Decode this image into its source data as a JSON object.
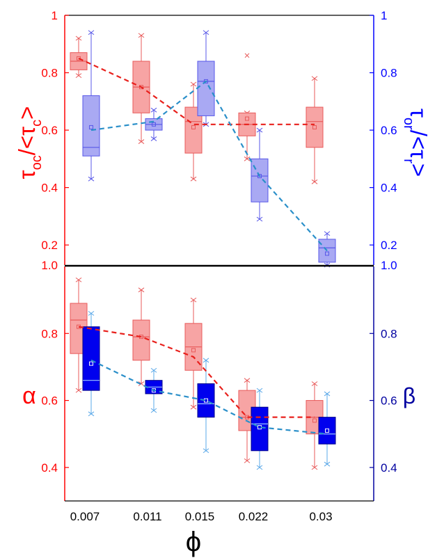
{
  "chart_data": [
    {
      "type": "box",
      "panel": "top",
      "categories": [
        "0.007",
        "0.011",
        "0.015",
        "0.022",
        "0.03"
      ],
      "y_left": {
        "label_main": "τ",
        "label_sub": "oc",
        "label_tail": "/<τ",
        "label_sub2": "c",
        "label_end": ">",
        "ticks": [
          "0.2",
          "0.4",
          "0.6",
          "0.8",
          "1"
        ],
        "bottom_label": "1.0",
        "range": [
          0.13,
          1.0
        ],
        "color": "#ff0000"
      },
      "y_right": {
        "label_main": "τ",
        "label_sub": "or",
        "label_tail": "/<τ",
        "label_sub2": "r",
        "label_end": ">",
        "ticks": [
          "0.2",
          "0.4",
          "0.6",
          "0.8",
          "1"
        ],
        "bottom_label": "1.0",
        "range": [
          0.13,
          1.0
        ],
        "color": "#0000ff"
      },
      "series": [
        {
          "side": "left",
          "fill": "#f7a4a4",
          "stroke": "#e85a5a",
          "line_color": "#e8201c",
          "boxes": [
            {
              "min": 0.79,
              "q1": 0.81,
              "median": 0.84,
              "mean": 0.85,
              "q3": 0.87,
              "max": 0.92
            },
            {
              "min": 0.56,
              "q1": 0.66,
              "median": 0.75,
              "mean": 0.75,
              "q3": 0.84,
              "max": 0.93
            },
            {
              "min": 0.43,
              "q1": 0.52,
              "median": 0.63,
              "mean": 0.61,
              "q3": 0.68,
              "max": 0.76
            },
            {
              "min": 0.5,
              "q1": 0.58,
              "median": 0.62,
              "mean": 0.64,
              "q3": 0.66,
              "max": 0.66,
              "outlier": 0.86
            },
            {
              "min": 0.42,
              "q1": 0.54,
              "median": 0.63,
              "mean": 0.61,
              "q3": 0.68,
              "max": 0.78
            }
          ],
          "trend": [
            0.85,
            0.75,
            0.62,
            0.62,
            0.62
          ]
        },
        {
          "side": "right",
          "fill": "#a9a9f3",
          "stroke": "#5757e8",
          "line_color": "#2a8fc9",
          "boxes": [
            {
              "min": 0.43,
              "q1": 0.51,
              "median": 0.54,
              "mean": 0.61,
              "q3": 0.72,
              "max": 0.94
            },
            {
              "min": 0.57,
              "q1": 0.6,
              "median": 0.62,
              "mean": 0.62,
              "q3": 0.64,
              "max": 0.67
            },
            {
              "min": 0.62,
              "q1": 0.65,
              "median": 0.77,
              "mean": 0.77,
              "q3": 0.84,
              "max": 0.94
            },
            {
              "min": 0.29,
              "q1": 0.35,
              "median": 0.44,
              "mean": 0.44,
              "q3": 0.5,
              "max": 0.6
            },
            {
              "min": 0.13,
              "q1": 0.14,
              "median": 0.19,
              "mean": 0.17,
              "q3": 0.22,
              "max": 0.24
            }
          ],
          "trend": [
            0.6,
            0.63,
            0.77,
            0.44,
            0.18
          ]
        }
      ]
    },
    {
      "type": "box",
      "panel": "bottom",
      "categories": [
        "0.007",
        "0.011",
        "0.015",
        "0.022",
        "0.03"
      ],
      "xlabel": "ϕ",
      "y_left": {
        "label": "α",
        "ticks": [
          "0.4",
          "0.6",
          "0.8"
        ],
        "range": [
          0.3,
          1.0
        ],
        "color": "#ff0000"
      },
      "y_right": {
        "label": "β",
        "ticks": [
          "0.4",
          "0.6",
          "0.8"
        ],
        "range": [
          0.3,
          1.0
        ],
        "color": "#0000a0"
      },
      "series": [
        {
          "side": "left",
          "fill": "#f7a4a4",
          "stroke": "#e85a5a",
          "line_color": "#e8201c",
          "boxes": [
            {
              "min": 0.63,
              "q1": 0.74,
              "median": 0.84,
              "mean": 0.82,
              "q3": 0.89,
              "max": 0.96
            },
            {
              "min": 0.65,
              "q1": 0.72,
              "median": 0.79,
              "mean": 0.79,
              "q3": 0.84,
              "max": 0.93
            },
            {
              "min": 0.58,
              "q1": 0.69,
              "median": 0.76,
              "mean": 0.75,
              "q3": 0.83,
              "max": 0.9
            },
            {
              "min": 0.42,
              "q1": 0.51,
              "median": 0.55,
              "mean": 0.55,
              "q3": 0.63,
              "max": 0.66
            },
            {
              "min": 0.4,
              "q1": 0.5,
              "median": 0.55,
              "mean": 0.54,
              "q3": 0.6,
              "max": 0.65
            }
          ],
          "trend": [
            0.82,
            0.79,
            0.73,
            0.55,
            0.55
          ]
        },
        {
          "side": "right",
          "fill": "#0000ee",
          "stroke": "#000088",
          "line_color": "#2a8fc9",
          "whisker_color": "#5aa8e8",
          "boxes": [
            {
              "min": 0.56,
              "q1": 0.63,
              "median": 0.66,
              "mean": 0.71,
              "q3": 0.82,
              "max": 0.86
            },
            {
              "min": 0.57,
              "q1": 0.62,
              "median": 0.64,
              "mean": 0.63,
              "q3": 0.66,
              "max": 0.69
            },
            {
              "min": 0.45,
              "q1": 0.55,
              "median": 0.59,
              "mean": 0.6,
              "q3": 0.65,
              "max": 0.72
            },
            {
              "min": 0.4,
              "q1": 0.45,
              "median": 0.53,
              "mean": 0.52,
              "q3": 0.58,
              "max": 0.63
            },
            {
              "min": 0.41,
              "q1": 0.47,
              "median": 0.5,
              "mean": 0.51,
              "q3": 0.55,
              "max": 0.62
            }
          ],
          "trend": [
            0.72,
            0.63,
            0.6,
            0.52,
            0.5
          ]
        }
      ]
    }
  ]
}
